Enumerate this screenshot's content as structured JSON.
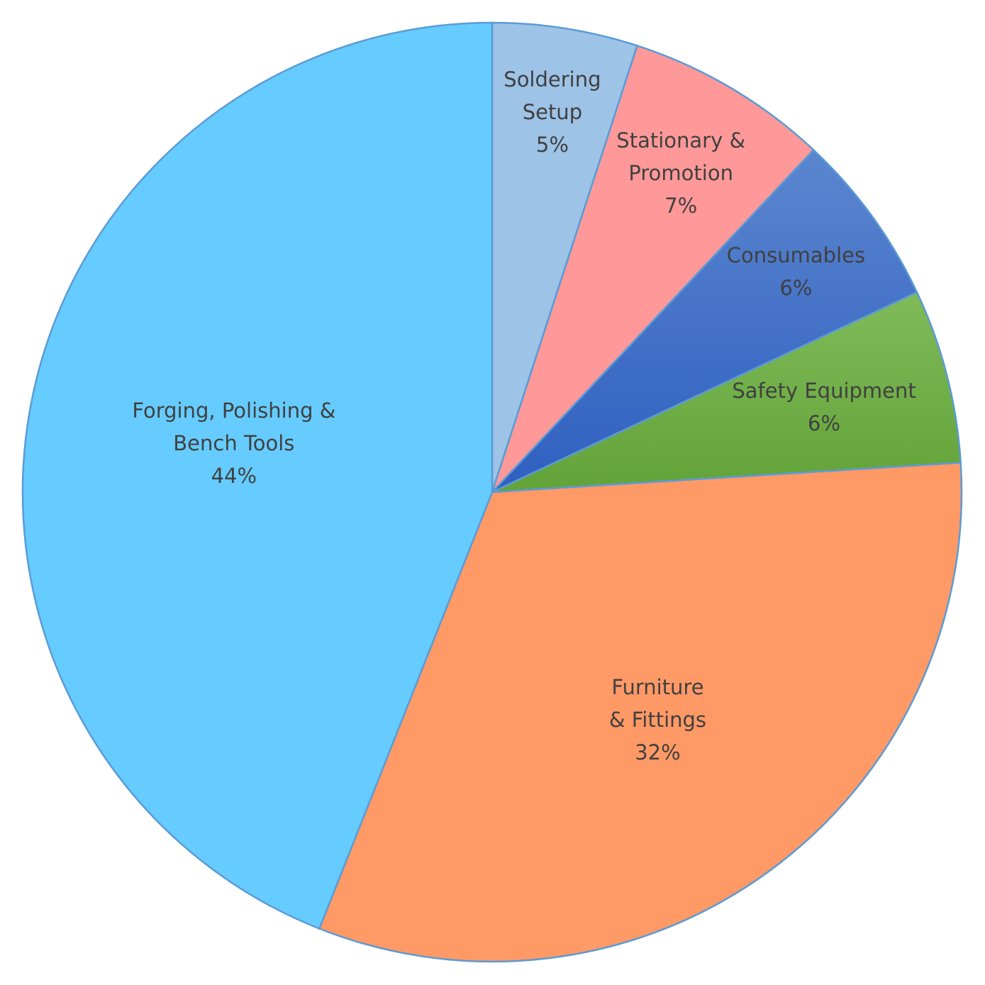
{
  "chart_data": {
    "type": "pie",
    "categories": [
      "Soldering Setup",
      "Stationary & Promotion",
      "Consumables",
      "Safety Equipment",
      "Furniture & Fittings",
      "Forging, Polishing & Bench Tools"
    ],
    "values": [
      5,
      7,
      6,
      6,
      32,
      44
    ],
    "value_labels": [
      "5%",
      "7%",
      "6%",
      "6%",
      "32%",
      "44%"
    ],
    "colors": [
      "#9dc3e6",
      "#ff9999",
      "#4472c4",
      "#70ad47",
      "#ff9966",
      "#66ccff"
    ]
  }
}
